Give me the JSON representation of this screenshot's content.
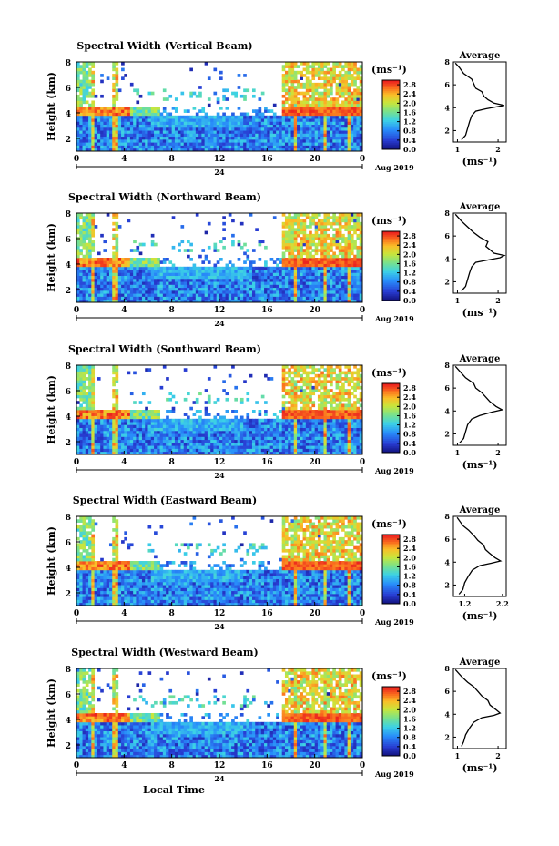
{
  "chart_data": [
    {
      "type": "heatmap",
      "title": "Spectral Width (Vertical Beam)",
      "ylabel": "Height (km)",
      "ylim": [
        1,
        8
      ],
      "y_ticks": [
        "2",
        "4",
        "6",
        "8"
      ],
      "x_ticks": [
        "0",
        "4",
        "8",
        "12",
        "16",
        "20",
        "0"
      ],
      "date_label": "24",
      "date_right": "Aug 2019",
      "colorbar": {
        "unit": "(ms⁻¹)",
        "ticks": [
          "0.0",
          "0.4",
          "0.8",
          "1.2",
          "1.6",
          "2.0",
          "2.4",
          "2.8"
        ],
        "range": [
          0,
          3.0
        ]
      },
      "average": {
        "title": "Average",
        "xlabel": "(ms⁻¹)",
        "x_ticks": [
          "1",
          "2"
        ],
        "xlim": [
          0.9,
          2.2
        ],
        "profile": [
          [
            1.1,
            1.2
          ],
          [
            1.2,
            1.6
          ],
          [
            1.25,
            2.2
          ],
          [
            1.3,
            2.8
          ],
          [
            1.35,
            3.3
          ],
          [
            1.45,
            3.7
          ],
          [
            1.7,
            3.9
          ],
          [
            2.0,
            4.1
          ],
          [
            2.15,
            4.2
          ],
          [
            1.9,
            4.4
          ],
          [
            1.75,
            4.7
          ],
          [
            1.65,
            5.0
          ],
          [
            1.6,
            5.4
          ],
          [
            1.45,
            5.7
          ],
          [
            1.4,
            6.1
          ],
          [
            1.35,
            6.5
          ],
          [
            1.15,
            7.0
          ],
          [
            1.05,
            7.5
          ],
          [
            0.95,
            7.9
          ]
        ]
      }
    },
    {
      "type": "heatmap",
      "title": "Spectral Width (Northward Beam)",
      "ylabel": "Height (km)",
      "ylim": [
        1,
        8
      ],
      "y_ticks": [
        "2",
        "4",
        "6",
        "8"
      ],
      "x_ticks": [
        "0",
        "4",
        "8",
        "12",
        "16",
        "20",
        "0"
      ],
      "date_label": "24",
      "date_right": "Aug 2019",
      "colorbar": {
        "unit": "(ms⁻¹)",
        "ticks": [
          "0.0",
          "0.4",
          "0.8",
          "1.2",
          "1.6",
          "2.0",
          "2.4",
          "2.8"
        ],
        "range": [
          0,
          3.0
        ]
      },
      "average": {
        "title": "Average",
        "xlabel": "(ms⁻¹)",
        "x_ticks": [
          "1",
          "2"
        ],
        "xlim": [
          0.9,
          2.2
        ],
        "profile": [
          [
            1.1,
            1.2
          ],
          [
            1.2,
            1.6
          ],
          [
            1.25,
            2.2
          ],
          [
            1.3,
            2.8
          ],
          [
            1.35,
            3.3
          ],
          [
            1.45,
            3.7
          ],
          [
            1.75,
            3.9
          ],
          [
            2.05,
            4.1
          ],
          [
            2.15,
            4.3
          ],
          [
            1.9,
            4.5
          ],
          [
            1.8,
            4.8
          ],
          [
            1.7,
            5.1
          ],
          [
            1.75,
            5.5
          ],
          [
            1.55,
            5.9
          ],
          [
            1.4,
            6.3
          ],
          [
            1.25,
            6.8
          ],
          [
            1.1,
            7.3
          ],
          [
            0.95,
            7.9
          ]
        ]
      }
    },
    {
      "type": "heatmap",
      "title": "Spectral Width (Southward Beam)",
      "ylabel": "Height (km)",
      "ylim": [
        1,
        8
      ],
      "y_ticks": [
        "2",
        "4",
        "6",
        "8"
      ],
      "x_ticks": [
        "0",
        "4",
        "8",
        "12",
        "16",
        "20",
        "0"
      ],
      "date_label": "24",
      "date_right": "Aug 2019",
      "colorbar": {
        "unit": "(ms⁻¹)",
        "ticks": [
          "0.0",
          "0.4",
          "0.8",
          "1.2",
          "1.6",
          "2.0",
          "2.4",
          "2.8"
        ],
        "range": [
          0,
          3.0
        ]
      },
      "average": {
        "title": "Average",
        "xlabel": "(ms⁻¹)",
        "x_ticks": [
          "1",
          "2"
        ],
        "xlim": [
          0.9,
          2.2
        ],
        "profile": [
          [
            1.05,
            1.2
          ],
          [
            1.15,
            1.6
          ],
          [
            1.2,
            2.2
          ],
          [
            1.25,
            2.8
          ],
          [
            1.35,
            3.3
          ],
          [
            1.55,
            3.6
          ],
          [
            1.85,
            3.9
          ],
          [
            2.1,
            4.1
          ],
          [
            1.95,
            4.4
          ],
          [
            1.8,
            4.8
          ],
          [
            1.7,
            5.2
          ],
          [
            1.6,
            5.6
          ],
          [
            1.45,
            6.0
          ],
          [
            1.4,
            6.4
          ],
          [
            1.2,
            6.9
          ],
          [
            1.1,
            7.3
          ],
          [
            0.95,
            7.9
          ]
        ]
      }
    },
    {
      "type": "heatmap",
      "title": "Spectral Width (Eastward Beam)",
      "ylabel": "Height (km)",
      "ylim": [
        1,
        8
      ],
      "y_ticks": [
        "2",
        "4",
        "6",
        "8"
      ],
      "x_ticks": [
        "0",
        "4",
        "8",
        "12",
        "16",
        "20",
        "0"
      ],
      "date_label": "24",
      "date_right": "Aug 2019",
      "colorbar": {
        "unit": "(ms⁻¹)",
        "ticks": [
          "0.0",
          "0.4",
          "0.8",
          "1.2",
          "1.6",
          "2.0",
          "2.4",
          "2.8"
        ],
        "range": [
          0,
          3.0
        ]
      },
      "average": {
        "title": "Average",
        "xlabel": "(ms⁻¹)",
        "x_ticks": [
          "1.2",
          "2.2"
        ],
        "xlim": [
          0.9,
          2.3
        ],
        "profile": [
          [
            1.05,
            1.2
          ],
          [
            1.15,
            1.6
          ],
          [
            1.2,
            2.2
          ],
          [
            1.3,
            2.8
          ],
          [
            1.4,
            3.3
          ],
          [
            1.6,
            3.7
          ],
          [
            1.9,
            3.9
          ],
          [
            2.15,
            4.1
          ],
          [
            2.0,
            4.4
          ],
          [
            1.85,
            4.8
          ],
          [
            1.75,
            5.1
          ],
          [
            1.7,
            5.5
          ],
          [
            1.55,
            5.9
          ],
          [
            1.45,
            6.3
          ],
          [
            1.3,
            6.8
          ],
          [
            1.15,
            7.2
          ],
          [
            1.0,
            7.9
          ]
        ]
      }
    },
    {
      "type": "heatmap",
      "title": "Spectral Width (Westward Beam)",
      "ylabel": "Height (km)",
      "ylim": [
        1,
        8
      ],
      "y_ticks": [
        "2",
        "4",
        "6",
        "8"
      ],
      "x_ticks": [
        "0",
        "4",
        "8",
        "12",
        "16",
        "20",
        "0"
      ],
      "date_label": "24",
      "date_right": "Aug 2019",
      "xlabel": "Local Time",
      "colorbar": {
        "unit": "(ms⁻¹)",
        "ticks": [
          "0.0",
          "0.4",
          "0.8",
          "1.2",
          "1.6",
          "2.0",
          "2.4",
          "2.8"
        ],
        "range": [
          0,
          3.0
        ]
      },
      "average": {
        "title": "Average",
        "xlabel": "(ms⁻¹)",
        "x_ticks": [
          "1",
          "2"
        ],
        "xlim": [
          0.9,
          2.2
        ],
        "profile": [
          [
            1.1,
            1.2
          ],
          [
            1.15,
            1.6
          ],
          [
            1.2,
            2.2
          ],
          [
            1.3,
            2.8
          ],
          [
            1.4,
            3.3
          ],
          [
            1.6,
            3.7
          ],
          [
            1.9,
            3.9
          ],
          [
            2.05,
            4.1
          ],
          [
            1.95,
            4.4
          ],
          [
            1.8,
            4.8
          ],
          [
            1.75,
            5.2
          ],
          [
            1.6,
            5.6
          ],
          [
            1.5,
            6.0
          ],
          [
            1.4,
            6.4
          ],
          [
            1.25,
            6.8
          ],
          [
            1.1,
            7.3
          ],
          [
            0.95,
            7.9
          ]
        ]
      }
    }
  ]
}
